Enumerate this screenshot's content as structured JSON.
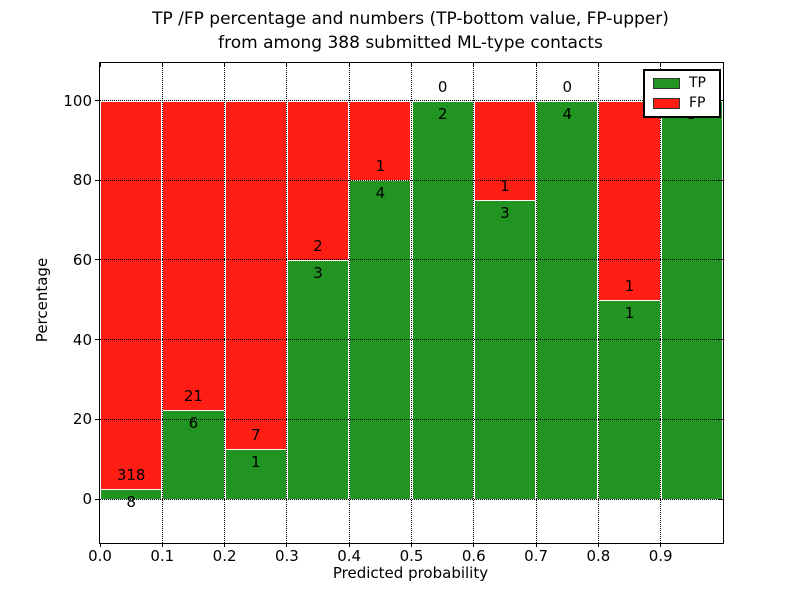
{
  "title": {
    "line1": "TP /FP percentage and numbers (TP-bottom value, FP-upper)",
    "line2": "from among 388 submitted ML-type contacts"
  },
  "colors": {
    "tp_green": "#229421",
    "fp_red": "#ff1d14",
    "grid": "#000000",
    "background": "#ffffff"
  },
  "chart_data": {
    "type": "bar",
    "stacked": true,
    "normalized": "each bin scaled to 100%",
    "title": "TP /FP percentage and numbers (TP-bottom value, FP-upper) from among 388 submitted ML-type contacts",
    "xlabel": "Predicted probability",
    "ylabel": "Percentage",
    "total_contacts": 388,
    "categories": [
      "0.0–0.1",
      "0.1–0.2",
      "0.2–0.3",
      "0.3–0.4",
      "0.4–0.5",
      "0.5–0.6",
      "0.6–0.7",
      "0.7–0.8",
      "0.8–0.9",
      "0.9–1.0"
    ],
    "series": [
      {
        "name": "TP",
        "color": "#229421",
        "values": [
          8,
          6,
          1,
          3,
          4,
          2,
          3,
          4,
          1,
          5
        ]
      },
      {
        "name": "FP",
        "color": "#ff1d14",
        "values": [
          318,
          21,
          7,
          2,
          1,
          0,
          1,
          0,
          1,
          0
        ]
      }
    ],
    "tp_pct": [
      2.45,
      22.22,
      12.5,
      60,
      80,
      100,
      75,
      100,
      50,
      100
    ],
    "x_tick_labels": [
      "0.0",
      "0.1",
      "0.2",
      "0.3",
      "0.4",
      "0.5",
      "0.6",
      "0.7",
      "0.8",
      "0.9"
    ],
    "y_tick_labels": [
      "0",
      "20",
      "40",
      "60",
      "80",
      "100"
    ],
    "y_tick_values": [
      0,
      20,
      40,
      60,
      80,
      100
    ],
    "xlim": [
      0.0,
      1.0
    ],
    "ylim": [
      -11,
      110
    ],
    "grid": "dotted, both axes, drawn over bars",
    "legend": {
      "position": "upper right",
      "entries": [
        {
          "label": "TP",
          "color": "#229421"
        },
        {
          "label": "FP",
          "color": "#ff1d14"
        }
      ]
    }
  }
}
